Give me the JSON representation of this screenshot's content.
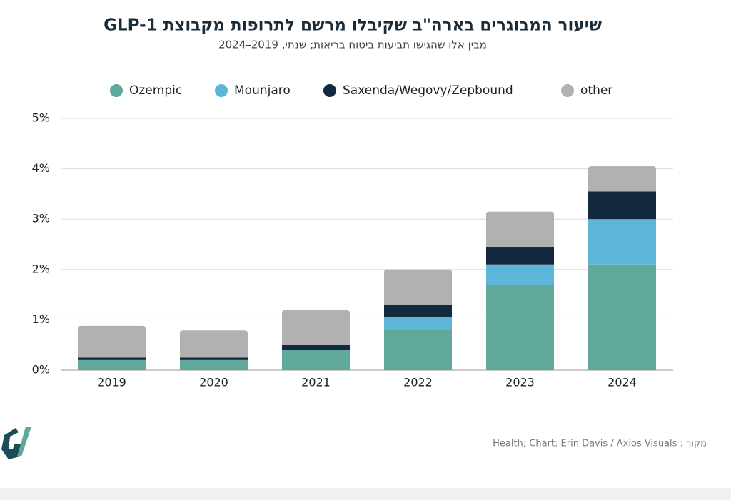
{
  "chart_data": {
    "type": "stacked_bar",
    "title": "שיעור המבוגרים בארה\"ב שקיבלו מרשם לתרופות מקבוצת GLP-1",
    "subtitle": "מבין אלו שהגישו תביעות ביטוח בריאות; שנתי, 2019–2024",
    "source": "מקור : Health; Chart: Erin Davis / Axios Visuals",
    "categories": [
      "2019",
      "2020",
      "2021",
      "2022",
      "2023",
      "2024"
    ],
    "series": [
      {
        "name": "Ozempic",
        "color": "#5fa89a",
        "values": [
          0.2,
          0.2,
          0.4,
          0.8,
          1.7,
          2.1
        ]
      },
      {
        "name": "Mounjaro",
        "color": "#5db6d9",
        "values": [
          0,
          0,
          0,
          0.25,
          0.4,
          0.9
        ]
      },
      {
        "name": "Saxenda/Wegovy/Zepbound",
        "color": "#13293d",
        "values": [
          0.05,
          0.05,
          0.1,
          0.25,
          0.35,
          0.55
        ]
      },
      {
        "name": "other",
        "color": "#b1b1b1",
        "values": [
          0.63,
          0.54,
          0.69,
          0.7,
          0.7,
          0.5
        ]
      }
    ],
    "ylim": [
      0,
      5
    ],
    "yticks": [
      {
        "value": 0,
        "label": "0%"
      },
      {
        "value": 1,
        "label": "1%"
      },
      {
        "value": 2,
        "label": "2%"
      },
      {
        "value": 3,
        "label": "3%"
      },
      {
        "value": 4,
        "label": "4%"
      },
      {
        "value": 5,
        "label": "5%"
      }
    ],
    "grid": true,
    "legend": "top"
  }
}
